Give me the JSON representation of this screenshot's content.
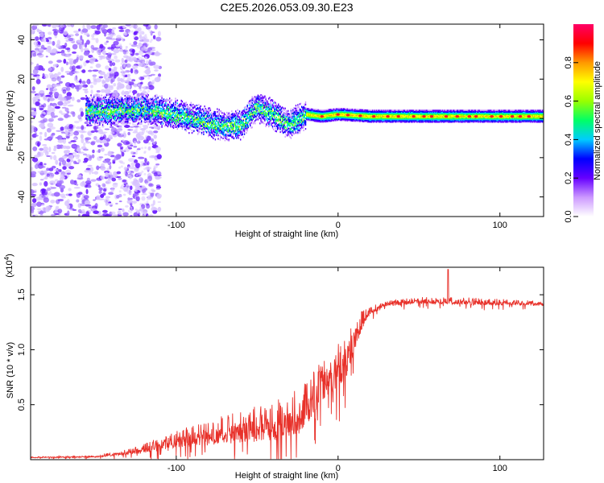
{
  "title": "C2E5.2026.053.09.30.E23",
  "chart_data": [
    {
      "type": "heatmap",
      "title": "C2E5.2026.053.09.30.E23",
      "xlabel": "Height of straight line (km)",
      "ylabel": "Frequency (Hz)",
      "xlim": [
        -190,
        127
      ],
      "ylim": [
        -50,
        48
      ],
      "xticks": [
        -100,
        0,
        100
      ],
      "yticks": [
        -40,
        -20,
        0,
        20,
        40
      ],
      "colorbar": {
        "label": "Normalized spectral amplitude",
        "range": [
          0.0,
          1.0
        ],
        "ticks": [
          0.0,
          0.2,
          0.4,
          0.6,
          0.8
        ],
        "tick_labels": [
          "0.0",
          "0.2",
          "0.4",
          "0.6",
          "0.8"
        ],
        "colormap": [
          "#ffffff",
          "#cc99ff",
          "#6600ff",
          "#0000ff",
          "#00ccff",
          "#00ff66",
          "#99ff00",
          "#ffff00",
          "#ff9900",
          "#ff0000",
          "#ff0066"
        ]
      },
      "centerline": {
        "x": [
          -155,
          -140,
          -120,
          -100,
          -85,
          -70,
          -60,
          -50,
          -40,
          -30,
          -20,
          -10,
          0,
          20,
          50,
          80,
          127
        ],
        "y": [
          4,
          4,
          5,
          2,
          -1,
          -4,
          -3,
          6,
          2,
          -3,
          2,
          1,
          2,
          1,
          1,
          1,
          1
        ]
      }
    },
    {
      "type": "line",
      "title": "",
      "xlabel": "Height of straight line (km)",
      "ylabel": "SNR (10 * v/v)",
      "y_exponent_label": "(x10",
      "y_exponent_power": "4",
      "y_exponent_close": ")",
      "xlim": [
        -190,
        127
      ],
      "ylim": [
        0,
        1.75
      ],
      "xticks": [
        -100,
        0,
        100
      ],
      "yticks": [
        0.5,
        1.0,
        1.5
      ],
      "ytick_labels": [
        "0.5",
        "1.0",
        "1.5"
      ],
      "color": "#e8312a",
      "envelope_x": [
        -190,
        -150,
        -130,
        -110,
        -90,
        -75,
        -60,
        -50,
        -40,
        -30,
        -22,
        -15,
        -10,
        -5,
        0,
        5,
        10,
        15,
        20,
        30,
        50,
        80,
        110,
        127
      ],
      "envelope_y": [
        0.02,
        0.03,
        0.07,
        0.14,
        0.22,
        0.26,
        0.3,
        0.32,
        0.36,
        0.4,
        0.46,
        0.62,
        0.72,
        0.78,
        0.85,
        0.95,
        1.12,
        1.28,
        1.36,
        1.42,
        1.45,
        1.44,
        1.43,
        1.42
      ],
      "noise_y": [
        0.01,
        0.02,
        0.05,
        0.12,
        0.2,
        0.25,
        0.3,
        0.34,
        0.38,
        0.4,
        0.45,
        0.4,
        0.35,
        0.38,
        0.42,
        0.4,
        0.3,
        0.18,
        0.08,
        0.05,
        0.06,
        0.07,
        0.05,
        0.04
      ],
      "peak": {
        "x": 68,
        "y": 1.73
      }
    }
  ]
}
